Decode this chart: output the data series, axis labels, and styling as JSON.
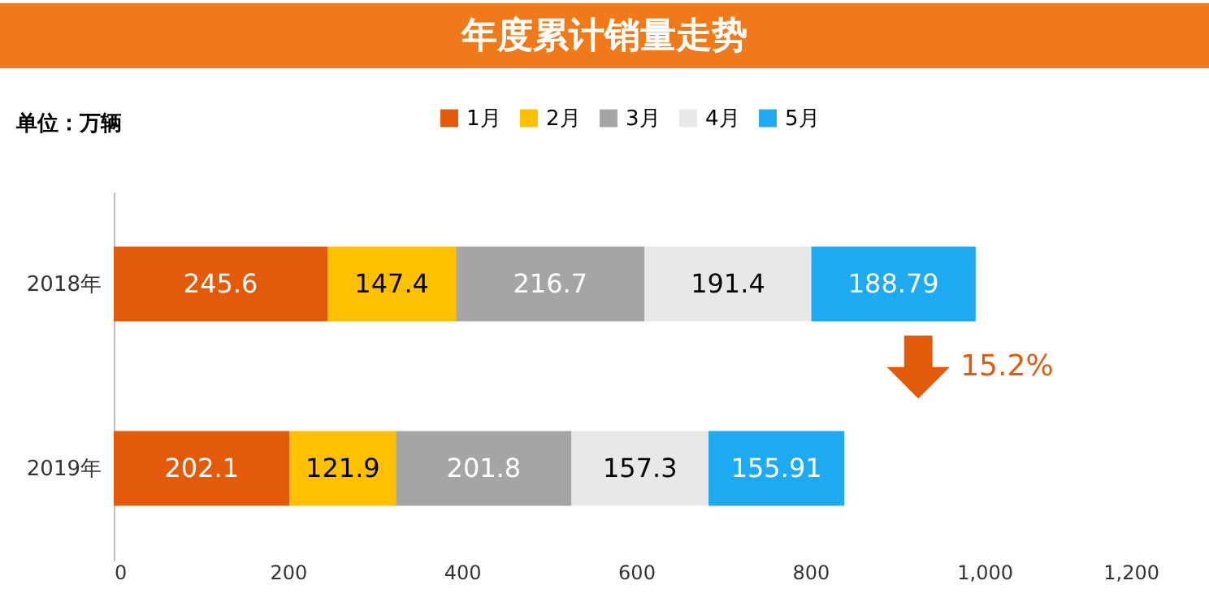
{
  "chart_data": {
    "type": "bar",
    "orientation": "horizontal",
    "stacked": true,
    "title": "年度累计销量走势",
    "subtitle": "单位：万辆",
    "categories": [
      "2018年",
      "2019年"
    ],
    "series": [
      {
        "name": "1月",
        "color": "#e35b0a",
        "values": [
          245.6,
          202.1
        ]
      },
      {
        "name": "2月",
        "color": "#ffc000",
        "values": [
          147.4,
          121.9
        ]
      },
      {
        "name": "3月",
        "color": "#a5a5a5",
        "values": [
          216.7,
          201.8
        ]
      },
      {
        "name": "4月",
        "color": "#e8e8e8",
        "values": [
          191.4,
          157.3
        ]
      },
      {
        "name": "5月",
        "color": "#1eaaf1",
        "values": [
          188.79,
          155.91
        ]
      }
    ],
    "xlim": [
      0,
      1200
    ],
    "xticks": [
      0,
      200,
      400,
      600,
      800,
      {
        "value": 1000,
        "label": "1,000"
      },
      {
        "value": 1200,
        "label": "1,200"
      }
    ],
    "data_labels": true,
    "legend": "top",
    "grid": false,
    "annotations": [
      "15.2%"
    ]
  }
}
